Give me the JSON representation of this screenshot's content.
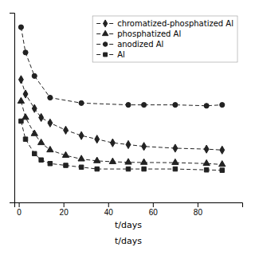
{
  "chart_data": {
    "type": "line",
    "x_label": "t/days",
    "annotations": [
      "t/days"
    ],
    "xlim": [
      -2,
      100
    ],
    "xticks": [
      0,
      20,
      40,
      60,
      80
    ],
    "ylim": [
      0,
      1.05
    ],
    "tick_labels": "x",
    "grid": false,
    "legend": "upper right",
    "series": [
      {
        "name": "chromatized-phosphatized Al",
        "color": "#222222",
        "marker": "diamond",
        "line_style": "dashed",
        "x": [
          1,
          3,
          7,
          10,
          14,
          21,
          28,
          35,
          42,
          49,
          56,
          70,
          84,
          91
        ],
        "values": [
          0.68,
          0.6,
          0.52,
          0.47,
          0.44,
          0.4,
          0.37,
          0.35,
          0.33,
          0.32,
          0.31,
          0.3,
          0.295,
          0.29
        ]
      },
      {
        "name": "phosphatized Al",
        "color": "#222222",
        "marker": "triangle",
        "line_style": "dashed",
        "x": [
          1,
          3,
          7,
          10,
          14,
          21,
          28,
          35,
          42,
          49,
          56,
          70,
          84,
          91
        ],
        "values": [
          0.56,
          0.47,
          0.38,
          0.33,
          0.29,
          0.26,
          0.24,
          0.23,
          0.225,
          0.222,
          0.221,
          0.22,
          0.215,
          0.21
        ]
      },
      {
        "name": "anodized Al",
        "color": "#222222",
        "marker": "circle",
        "line_style": "dashed",
        "x": [
          1,
          3,
          7,
          14,
          28,
          49,
          56,
          70,
          84,
          91
        ],
        "values": [
          0.97,
          0.83,
          0.7,
          0.58,
          0.55,
          0.54,
          0.54,
          0.54,
          0.535,
          0.54
        ]
      },
      {
        "name": "Al",
        "color": "#222222",
        "marker": "square",
        "line_style": "dashed",
        "x": [
          1,
          3,
          7,
          10,
          14,
          21,
          28,
          35,
          49,
          56,
          70,
          84,
          91
        ],
        "values": [
          0.45,
          0.35,
          0.27,
          0.235,
          0.215,
          0.205,
          0.195,
          0.185,
          0.185,
          0.185,
          0.185,
          0.18,
          0.178
        ]
      }
    ]
  }
}
